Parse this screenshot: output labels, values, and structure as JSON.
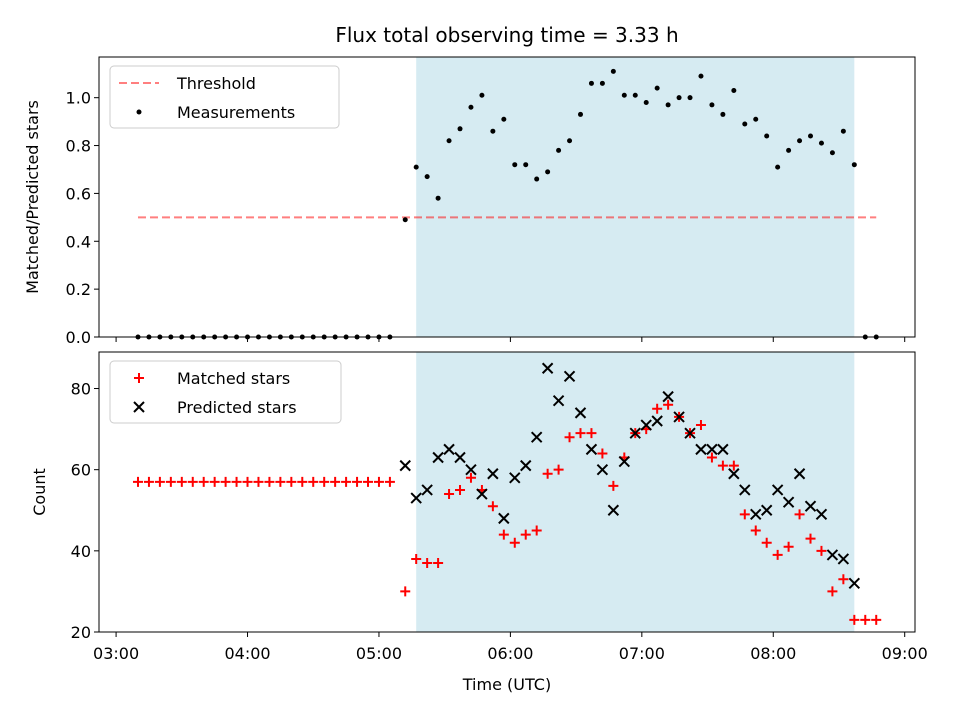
{
  "title": "Flux total observing time = 3.33 h",
  "xlabel": "Time (UTC)",
  "x_ticks": [
    "03:00",
    "04:00",
    "05:00",
    "06:00",
    "07:00",
    "08:00",
    "09:00"
  ],
  "colors": {
    "window": "#add8e6",
    "threshold": "#ff0000",
    "measurement": "#000000",
    "matched": "#ff0000",
    "predicted": "#000000"
  },
  "chart_data": [
    {
      "type": "scatter",
      "ylabel": "Matched/Predicted stars",
      "ylim": [
        0,
        1.17
      ],
      "y_ticks": [
        "0.0",
        "0.2",
        "0.4",
        "0.6",
        "0.8",
        "1.0"
      ],
      "grid": false,
      "legend_position": "top-left",
      "observing_window": [
        "05:17",
        "08:37"
      ],
      "threshold": {
        "name": "Threshold",
        "value": 0.5,
        "x_range": [
          "03:10",
          "08:47"
        ]
      },
      "series": [
        {
          "name": "Measurements",
          "points": [
            [
              "03:10",
              0
            ],
            [
              "03:15",
              0
            ],
            [
              "03:20",
              0
            ],
            [
              "03:25",
              0
            ],
            [
              "03:30",
              0
            ],
            [
              "03:35",
              0
            ],
            [
              "03:40",
              0
            ],
            [
              "03:45",
              0
            ],
            [
              "03:50",
              0
            ],
            [
              "03:55",
              0
            ],
            [
              "04:00",
              0
            ],
            [
              "04:05",
              0
            ],
            [
              "04:10",
              0
            ],
            [
              "04:15",
              0
            ],
            [
              "04:20",
              0
            ],
            [
              "04:25",
              0
            ],
            [
              "04:30",
              0
            ],
            [
              "04:35",
              0
            ],
            [
              "04:40",
              0
            ],
            [
              "04:45",
              0
            ],
            [
              "04:50",
              0
            ],
            [
              "04:55",
              0
            ],
            [
              "05:00",
              0
            ],
            [
              "05:05",
              0
            ],
            [
              "05:12",
              0.49
            ],
            [
              "05:17",
              0.71
            ],
            [
              "05:22",
              0.67
            ],
            [
              "05:27",
              0.58
            ],
            [
              "05:32",
              0.82
            ],
            [
              "05:37",
              0.87
            ],
            [
              "05:42",
              0.96
            ],
            [
              "05:47",
              1.01
            ],
            [
              "05:52",
              0.86
            ],
            [
              "05:57",
              0.91
            ],
            [
              "06:02",
              0.72
            ],
            [
              "06:07",
              0.72
            ],
            [
              "06:12",
              0.66
            ],
            [
              "06:17",
              0.69
            ],
            [
              "06:22",
              0.78
            ],
            [
              "06:27",
              0.82
            ],
            [
              "06:32",
              0.93
            ],
            [
              "06:37",
              1.06
            ],
            [
              "06:42",
              1.06
            ],
            [
              "06:47",
              1.11
            ],
            [
              "06:52",
              1.01
            ],
            [
              "06:57",
              1.01
            ],
            [
              "07:02",
              0.98
            ],
            [
              "07:07",
              1.04
            ],
            [
              "07:12",
              0.97
            ],
            [
              "07:17",
              1.0
            ],
            [
              "07:22",
              1.0
            ],
            [
              "07:27",
              1.09
            ],
            [
              "07:32",
              0.97
            ],
            [
              "07:37",
              0.93
            ],
            [
              "07:42",
              1.03
            ],
            [
              "07:47",
              0.89
            ],
            [
              "07:52",
              0.91
            ],
            [
              "07:57",
              0.84
            ],
            [
              "08:02",
              0.71
            ],
            [
              "08:07",
              0.78
            ],
            [
              "08:12",
              0.82
            ],
            [
              "08:17",
              0.84
            ],
            [
              "08:22",
              0.81
            ],
            [
              "08:27",
              0.77
            ],
            [
              "08:32",
              0.86
            ],
            [
              "08:37",
              0.72
            ],
            [
              "08:42",
              0
            ],
            [
              "08:47",
              0
            ]
          ]
        }
      ]
    },
    {
      "type": "scatter",
      "ylabel": "Count",
      "ylim": [
        20,
        89
      ],
      "y_ticks": [
        "20",
        "40",
        "60",
        "80"
      ],
      "grid": false,
      "legend_position": "top-left",
      "observing_window": [
        "05:17",
        "08:37"
      ],
      "series": [
        {
          "name": "Matched stars",
          "marker": "plus",
          "points": [
            [
              "03:10",
              57
            ],
            [
              "03:15",
              57
            ],
            [
              "03:20",
              57
            ],
            [
              "03:25",
              57
            ],
            [
              "03:30",
              57
            ],
            [
              "03:35",
              57
            ],
            [
              "03:40",
              57
            ],
            [
              "03:45",
              57
            ],
            [
              "03:50",
              57
            ],
            [
              "03:55",
              57
            ],
            [
              "04:00",
              57
            ],
            [
              "04:05",
              57
            ],
            [
              "04:10",
              57
            ],
            [
              "04:15",
              57
            ],
            [
              "04:20",
              57
            ],
            [
              "04:25",
              57
            ],
            [
              "04:30",
              57
            ],
            [
              "04:35",
              57
            ],
            [
              "04:40",
              57
            ],
            [
              "04:45",
              57
            ],
            [
              "04:50",
              57
            ],
            [
              "04:55",
              57
            ],
            [
              "05:00",
              57
            ],
            [
              "05:05",
              57
            ],
            [
              "05:12",
              30
            ],
            [
              "05:17",
              38
            ],
            [
              "05:22",
              37
            ],
            [
              "05:27",
              37
            ],
            [
              "05:32",
              54
            ],
            [
              "05:37",
              55
            ],
            [
              "05:42",
              58
            ],
            [
              "05:47",
              55
            ],
            [
              "05:52",
              51
            ],
            [
              "05:57",
              44
            ],
            [
              "06:02",
              42
            ],
            [
              "06:07",
              44
            ],
            [
              "06:12",
              45
            ],
            [
              "06:17",
              59
            ],
            [
              "06:22",
              60
            ],
            [
              "06:27",
              68
            ],
            [
              "06:32",
              69
            ],
            [
              "06:37",
              69
            ],
            [
              "06:42",
              64
            ],
            [
              "06:47",
              56
            ],
            [
              "06:52",
              63
            ],
            [
              "06:57",
              69
            ],
            [
              "07:02",
              70
            ],
            [
              "07:07",
              75
            ],
            [
              "07:12",
              76
            ],
            [
              "07:17",
              73
            ],
            [
              "07:22",
              69
            ],
            [
              "07:27",
              71
            ],
            [
              "07:32",
              63
            ],
            [
              "07:37",
              61
            ],
            [
              "07:42",
              61
            ],
            [
              "07:47",
              49
            ],
            [
              "07:52",
              45
            ],
            [
              "07:57",
              42
            ],
            [
              "08:02",
              39
            ],
            [
              "08:07",
              41
            ],
            [
              "08:12",
              49
            ],
            [
              "08:17",
              43
            ],
            [
              "08:22",
              40
            ],
            [
              "08:27",
              30
            ],
            [
              "08:32",
              33
            ],
            [
              "08:37",
              23
            ],
            [
              "08:42",
              23
            ],
            [
              "08:47",
              23
            ]
          ]
        },
        {
          "name": "Predicted stars",
          "marker": "x",
          "points": [
            [
              "05:12",
              61
            ],
            [
              "05:17",
              53
            ],
            [
              "05:22",
              55
            ],
            [
              "05:27",
              63
            ],
            [
              "05:32",
              65
            ],
            [
              "05:37",
              63
            ],
            [
              "05:42",
              60
            ],
            [
              "05:47",
              54
            ],
            [
              "05:52",
              59
            ],
            [
              "05:57",
              48
            ],
            [
              "06:02",
              58
            ],
            [
              "06:07",
              61
            ],
            [
              "06:12",
              68
            ],
            [
              "06:17",
              85
            ],
            [
              "06:22",
              77
            ],
            [
              "06:27",
              83
            ],
            [
              "06:32",
              74
            ],
            [
              "06:37",
              65
            ],
            [
              "06:42",
              60
            ],
            [
              "06:47",
              50
            ],
            [
              "06:52",
              62
            ],
            [
              "06:57",
              69
            ],
            [
              "07:02",
              71
            ],
            [
              "07:07",
              72
            ],
            [
              "07:12",
              78
            ],
            [
              "07:17",
              73
            ],
            [
              "07:22",
              69
            ],
            [
              "07:27",
              65
            ],
            [
              "07:32",
              65
            ],
            [
              "07:37",
              65
            ],
            [
              "07:42",
              59
            ],
            [
              "07:47",
              55
            ],
            [
              "07:52",
              49
            ],
            [
              "07:57",
              50
            ],
            [
              "08:02",
              55
            ],
            [
              "08:07",
              52
            ],
            [
              "08:12",
              59
            ],
            [
              "08:17",
              51
            ],
            [
              "08:22",
              49
            ],
            [
              "08:27",
              39
            ],
            [
              "08:32",
              38
            ],
            [
              "08:37",
              32
            ]
          ]
        }
      ]
    }
  ]
}
